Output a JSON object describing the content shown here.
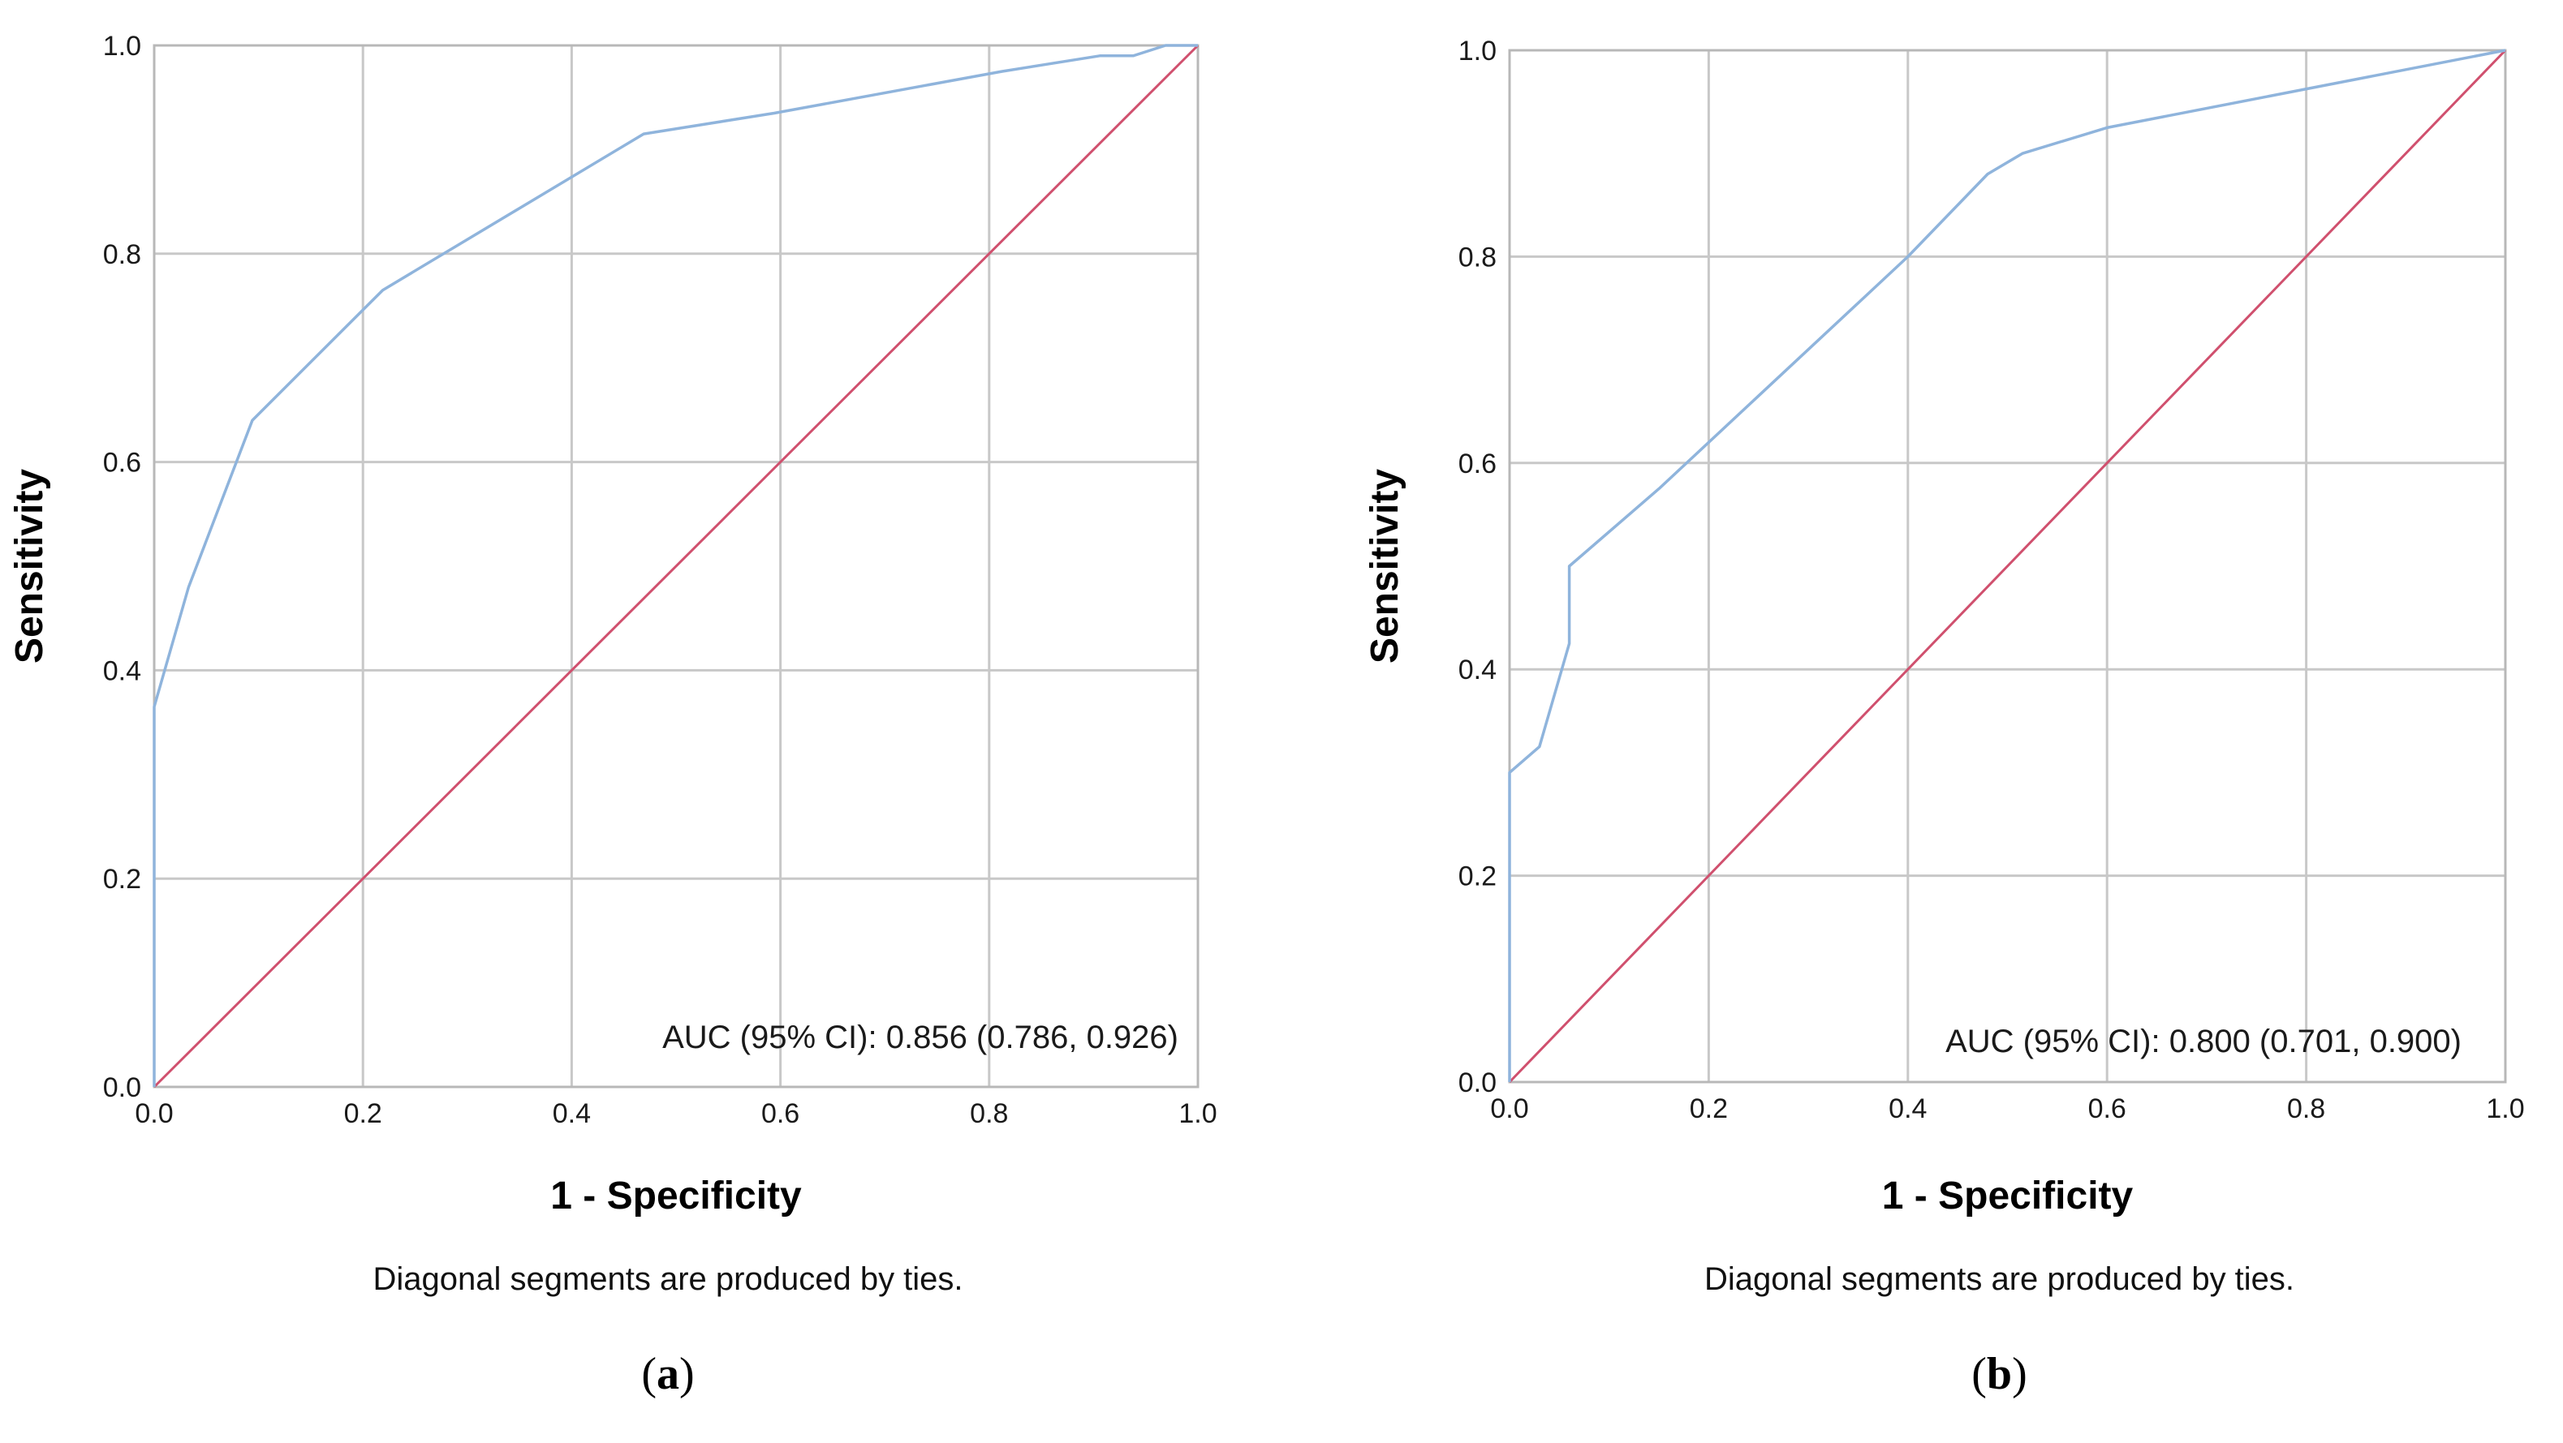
{
  "chart_data": [
    {
      "type": "line",
      "panel_label": "a",
      "title": "",
      "xlabel": "1 - Specificity",
      "ylabel": "Sensitivity",
      "xlim": [
        0,
        1
      ],
      "ylim": [
        0,
        1
      ],
      "x_ticks": [
        "0.0",
        "0.2",
        "0.4",
        "0.6",
        "0.8",
        "1.0"
      ],
      "y_ticks": [
        "0.0",
        "0.2",
        "0.4",
        "0.6",
        "0.8",
        "1.0"
      ],
      "grid": true,
      "annotation": "AUC (95% CI): 0.856 (0.786, 0.926)",
      "footnote": "Diagonal segments are produced by ties.",
      "series": [
        {
          "name": "ROC curve",
          "color": "#8fb4dc",
          "x": [
            0.0,
            0.0,
            0.033,
            0.094,
            0.219,
            0.469,
            0.594,
            0.812,
            0.906,
            0.938,
            0.969,
            1.0
          ],
          "y": [
            0.0,
            0.365,
            0.48,
            0.64,
            0.765,
            0.915,
            0.935,
            0.975,
            0.99,
            0.99,
            1.0,
            1.0
          ]
        },
        {
          "name": "Reference line",
          "color": "#d0506e",
          "x": [
            0,
            1
          ],
          "y": [
            0,
            1
          ]
        }
      ]
    },
    {
      "type": "line",
      "panel_label": "b",
      "title": "",
      "xlabel": "1 - Specificity",
      "ylabel": "Sensitivity",
      "xlim": [
        0,
        1
      ],
      "ylim": [
        0,
        1
      ],
      "x_ticks": [
        "0.0",
        "0.2",
        "0.4",
        "0.6",
        "0.8",
        "1.0"
      ],
      "y_ticks": [
        "0.0",
        "0.2",
        "0.4",
        "0.6",
        "0.8",
        "1.0"
      ],
      "grid": true,
      "annotation": "AUC (95% CI): 0.800 (0.701, 0.900)",
      "footnote": "Diagonal segments are produced by ties.",
      "series": [
        {
          "name": "ROC curve",
          "color": "#8fb4dc",
          "x": [
            0.0,
            0.0,
            0.03,
            0.06,
            0.06,
            0.15,
            0.4,
            0.48,
            0.515,
            0.6,
            1.0
          ],
          "y": [
            0.0,
            0.3,
            0.325,
            0.425,
            0.5,
            0.575,
            0.8,
            0.88,
            0.9,
            0.925,
            1.0
          ]
        },
        {
          "name": "Reference line",
          "color": "#d0506e",
          "x": [
            0,
            1
          ],
          "y": [
            0,
            1
          ]
        }
      ]
    }
  ]
}
